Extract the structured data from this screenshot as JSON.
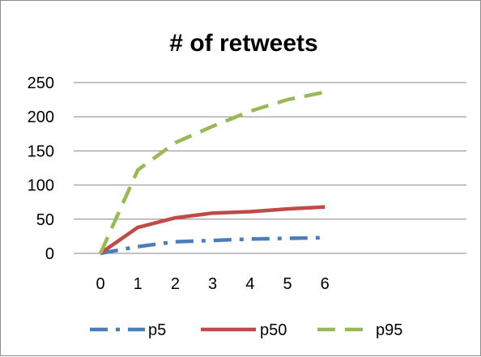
{
  "chart_data": {
    "type": "line",
    "title": "# of retweets",
    "xlabel": "",
    "ylabel": "",
    "x": [
      0,
      1,
      2,
      3,
      4,
      5,
      6
    ],
    "ylim": [
      0,
      250
    ],
    "yticks": [
      0,
      50,
      100,
      150,
      200,
      250
    ],
    "grid": "horizontal",
    "legend_position": "bottom",
    "series": [
      {
        "name": "p5",
        "values": [
          0,
          10,
          17,
          19,
          21,
          22,
          23
        ],
        "color": "#4a7ebb",
        "dash": "dash-dot"
      },
      {
        "name": "p50",
        "values": [
          0,
          38,
          52,
          59,
          61,
          65,
          68
        ],
        "color": "#be4b48",
        "dash": "solid"
      },
      {
        "name": "p95",
        "values": [
          0,
          122,
          162,
          186,
          208,
          225,
          236
        ],
        "color": "#98b954",
        "dash": "dash"
      }
    ]
  }
}
